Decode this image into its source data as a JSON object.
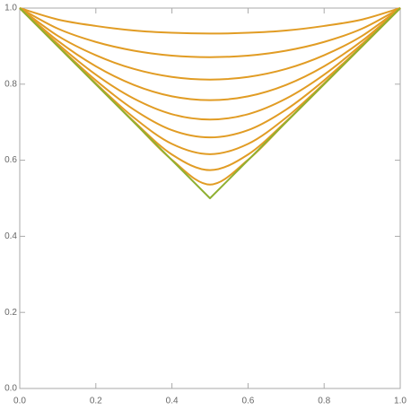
{
  "chart_data": {
    "type": "line",
    "x": [
      0,
      0.1,
      0.2,
      0.3,
      0.4,
      0.5,
      0.6,
      0.7,
      0.8,
      0.9,
      1
    ],
    "series": [
      {
        "color": "#e19c24",
        "values": [
          1,
          0.97,
          0.953,
          0.941,
          0.935,
          0.933,
          0.935,
          0.941,
          0.953,
          0.97,
          1
        ]
      },
      {
        "color": "#e19c24",
        "values": [
          1,
          0.946,
          0.911,
          0.888,
          0.875,
          0.871,
          0.875,
          0.888,
          0.911,
          0.946,
          1
        ]
      },
      {
        "color": "#e19c24",
        "values": [
          1,
          0.927,
          0.876,
          0.84,
          0.819,
          0.812,
          0.819,
          0.84,
          0.876,
          0.927,
          1
        ]
      },
      {
        "color": "#e19c24",
        "values": [
          1,
          0.914,
          0.847,
          0.798,
          0.768,
          0.758,
          0.768,
          0.798,
          0.847,
          0.914,
          1
        ]
      },
      {
        "color": "#e19c24",
        "values": [
          1,
          0.906,
          0.825,
          0.762,
          0.721,
          0.707,
          0.721,
          0.762,
          0.825,
          0.906,
          1
        ]
      },
      {
        "color": "#e19c24",
        "values": [
          1,
          0.901,
          0.81,
          0.733,
          0.679,
          0.66,
          0.679,
          0.733,
          0.81,
          0.901,
          1
        ]
      },
      {
        "color": "#e19c24",
        "values": [
          1,
          0.9,
          0.802,
          0.712,
          0.643,
          0.616,
          0.643,
          0.712,
          0.802,
          0.9,
          1
        ]
      },
      {
        "color": "#e19c24",
        "values": [
          1,
          0.9,
          0.8,
          0.702,
          0.615,
          0.574,
          0.615,
          0.702,
          0.8,
          0.9,
          1
        ]
      },
      {
        "color": "#e19c24",
        "values": [
          1,
          0.9,
          0.8,
          0.7,
          0.601,
          0.536,
          0.601,
          0.7,
          0.8,
          0.9,
          1
        ]
      },
      {
        "color": "#8fb032",
        "values": [
          1,
          0.9,
          0.8,
          0.7,
          0.6,
          0.5,
          0.6,
          0.7,
          0.8,
          0.9,
          1
        ]
      }
    ],
    "xlim": [
      0,
      1
    ],
    "ylim": [
      0,
      1
    ],
    "xticks": [
      {
        "value": 0,
        "label": "0.0"
      },
      0.2,
      0.4,
      0.6,
      0.8,
      {
        "value": 1,
        "label": "1.0"
      }
    ],
    "yticks": [
      {
        "value": 0,
        "label": "0.0"
      },
      0.2,
      0.4,
      0.6,
      0.8,
      {
        "value": 1,
        "label": "1.0"
      }
    ]
  }
}
